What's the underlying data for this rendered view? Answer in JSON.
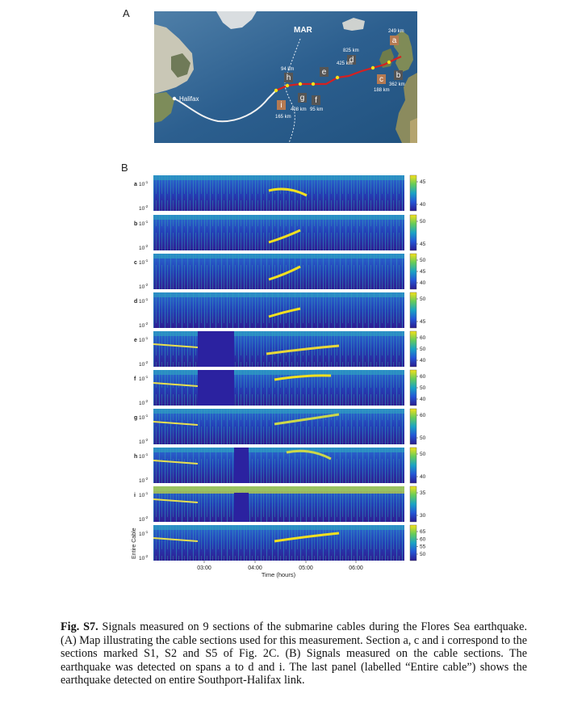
{
  "figure": {
    "panel_a_letter": "A",
    "panel_b_letter": "B",
    "map": {
      "labels": {
        "mar": "MAR",
        "halifax": "Halifax"
      },
      "sections": [
        {
          "letter": "a",
          "dist": "249 km",
          "color": "#b57a52"
        },
        {
          "letter": "b",
          "dist": "362 km",
          "color": "#555555"
        },
        {
          "letter": "c",
          "dist": "188 km",
          "color": "#b57a52"
        },
        {
          "letter": "d",
          "dist": "825 km",
          "color": "#555555"
        },
        {
          "letter": "e",
          "dist": "425 km",
          "color": "#555555"
        },
        {
          "letter": "f",
          "dist": "95 km",
          "color": "#555555"
        },
        {
          "letter": "g",
          "dist": "408 km",
          "color": "#555555"
        },
        {
          "letter": "h",
          "dist": "94 km",
          "color": "#555555"
        },
        {
          "letter": "i",
          "dist": "165 km",
          "color": "#b57a52"
        }
      ]
    },
    "spectrogram": {
      "ytick_top": "10",
      "ytick_top_exp": "-1",
      "ytick_bottom": "10",
      "ytick_bottom_exp": "-2",
      "rows": [
        {
          "label": "a",
          "cbar": [
            "45",
            "40"
          ]
        },
        {
          "label": "b",
          "cbar": [
            "50",
            "45"
          ]
        },
        {
          "label": "c",
          "cbar": [
            "50",
            "45",
            "40"
          ]
        },
        {
          "label": "d",
          "cbar": [
            "50",
            "45"
          ]
        },
        {
          "label": "e",
          "cbar": [
            "60",
            "50",
            "40"
          ]
        },
        {
          "label": "f",
          "cbar": [
            "60",
            "50",
            "40"
          ]
        },
        {
          "label": "g",
          "cbar": [
            "60",
            "50"
          ]
        },
        {
          "label": "h",
          "cbar": [
            "50",
            "40"
          ]
        },
        {
          "label": "i",
          "cbar": [
            "35",
            "30"
          ]
        },
        {
          "label": "Entire Cable",
          "cbar": [
            "65",
            "60",
            "55",
            "50"
          ]
        }
      ],
      "x_ticks": [
        "03:00",
        "04:00",
        "05:00",
        "06:00"
      ],
      "x_label": "Time (hours)"
    },
    "caption": {
      "fig_label": "Fig. S7.",
      "text": " Signals measured on 9 sections of the submarine cables during the Flores Sea earthquake. (A) Map illustrating the cable sections used for this measurement. Section a, c and i correspond to the sections marked S1, S2 and S5 of Fig. 2C. (B) Signals measured on the cable sections. The earthquake was detected on spans a to d and i. The last panel (labelled “Entire cable”) shows the earthquake detected on entire Southport-Halifax link."
    }
  }
}
